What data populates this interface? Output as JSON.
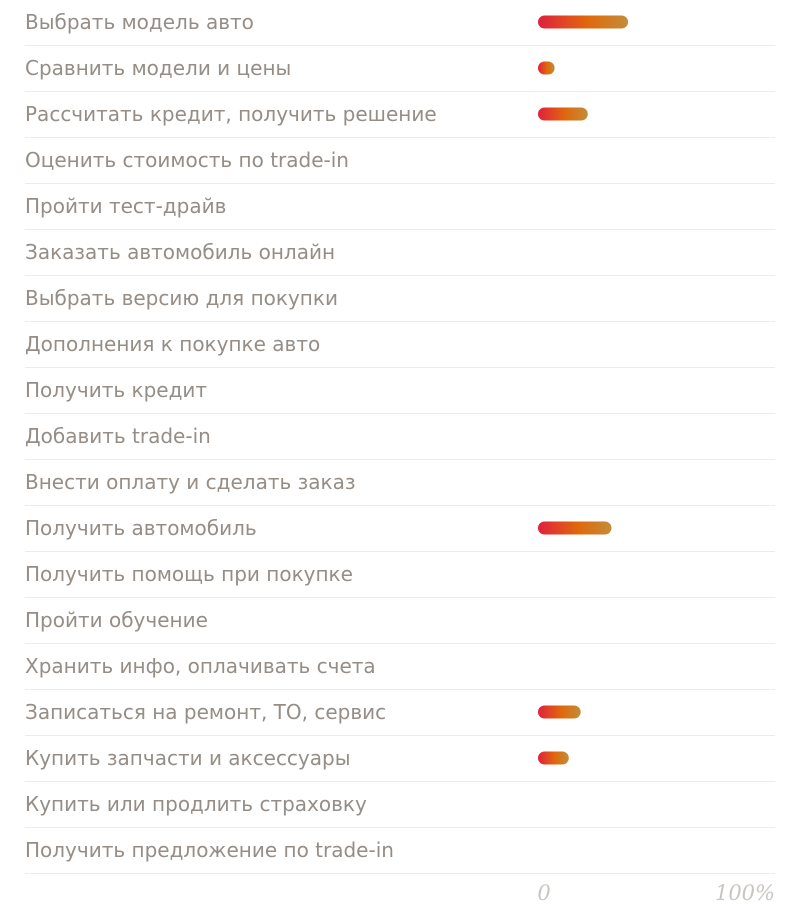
{
  "chart_data": {
    "type": "bar",
    "orientation": "horizontal",
    "categories": [
      "Выбрать модель авто",
      "Сравнить модели и цены",
      "Рассчитать кредит, получить решение",
      "Оценить стоимость по trade-in",
      "Пройти тест-драйв",
      "Заказать автомобиль онлайн",
      "Выбрать версию для покупки",
      "Дополнения к покупке авто",
      "Получить кредит",
      "Добавить trade-in",
      "Внести оплату и сделать заказ",
      "Получить автомобиль",
      "Получить помощь при покупке",
      "Пройти обучение",
      "Хранить инфо, оплачивать счета",
      "Записаться на ремонт, ТО, сервис",
      "Купить запчасти и аксессуары",
      "Купить или продлить страховку",
      "Получить предложение по trade-in"
    ],
    "values": [
      38,
      7,
      21,
      0,
      0,
      0,
      0,
      0,
      0,
      0,
      0,
      31,
      0,
      0,
      0,
      18,
      13,
      0,
      0
    ],
    "xlim": [
      0,
      100
    ],
    "x_tick_labels": [
      "0",
      "100%"
    ],
    "grid": false,
    "legend": "none",
    "colors": {
      "row_label": "#958d86",
      "divider": "#ececec",
      "tick_label": "#c9c5c0",
      "bar_gradient": [
        "#e0203e",
        "#e0680c",
        "#c28d38"
      ]
    }
  }
}
